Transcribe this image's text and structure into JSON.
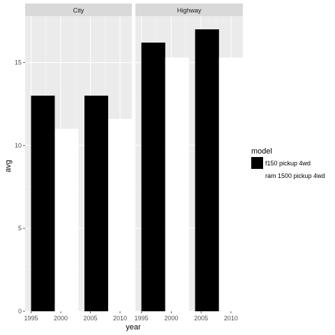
{
  "chart_data": {
    "type": "bar",
    "xlabel": "year",
    "ylabel": "avg",
    "x_ticks": [
      "1995",
      "2000",
      "2005",
      "2010"
    ],
    "y_ticks": [
      "0",
      "5",
      "10",
      "15"
    ],
    "xlim": [
      1994,
      2012
    ],
    "ylim": [
      0,
      17.8
    ],
    "grid": true,
    "legend_position": "right",
    "legend_title": "model",
    "facets": [
      {
        "label": "City",
        "series": [
          {
            "name": "f150 pickup 4wd",
            "color": "#000000",
            "points": [
              {
                "x": 1999,
                "y": 13
              },
              {
                "x": 2008,
                "y": 13
              }
            ]
          },
          {
            "name": "ram 1500 pickup 4wd",
            "color": "#ffffff",
            "points": [
              {
                "x": 1999,
                "y": 11
              },
              {
                "x": 2008,
                "y": 11.6
              }
            ]
          }
        ]
      },
      {
        "label": "Highway",
        "series": [
          {
            "name": "f150 pickup 4wd",
            "color": "#000000",
            "points": [
              {
                "x": 1999,
                "y": 16.2
              },
              {
                "x": 2008,
                "y": 17
              }
            ]
          },
          {
            "name": "ram 1500 pickup 4wd",
            "color": "#ffffff",
            "points": [
              {
                "x": 1999,
                "y": 15.3
              },
              {
                "x": 2008,
                "y": 15.3
              }
            ]
          }
        ]
      }
    ]
  }
}
